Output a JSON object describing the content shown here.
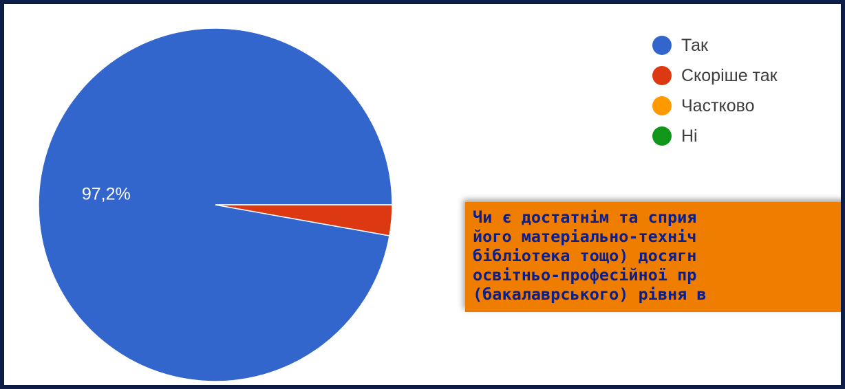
{
  "chart_data": {
    "type": "pie",
    "categories": [
      "Так",
      "Скоріше так",
      "Частково",
      "Ні"
    ],
    "values": [
      97.2,
      2.8,
      0,
      0
    ],
    "data_labels": [
      "97,2%",
      "",
      "",
      ""
    ],
    "colors": [
      "#3366cc",
      "#dc3912",
      "#ff9900",
      "#109618"
    ],
    "legend_position": "top-right"
  },
  "question": {
    "text": "Чи є достатнім та сприя\nйого матеріально-техніч\nбібліотека тощо) досягн\nосвітньо-професійної пр\n(бакалаврського) рівня в"
  }
}
